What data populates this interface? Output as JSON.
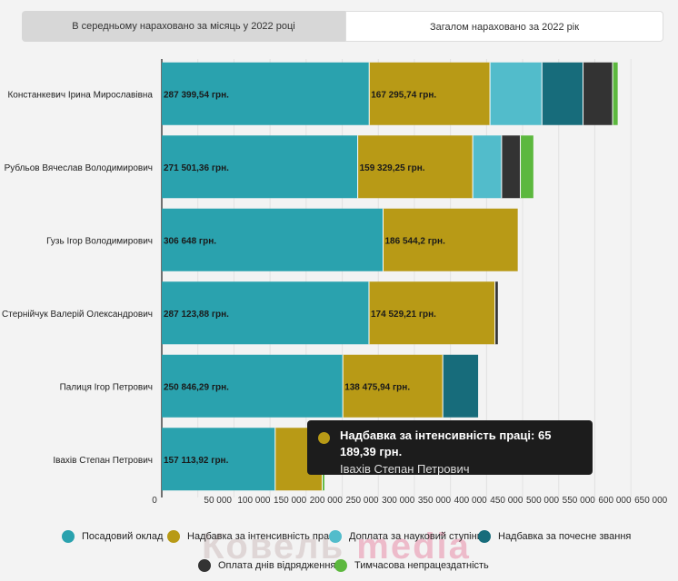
{
  "tabs": [
    {
      "label": "В середньому нараховано за місяць у 2022 році",
      "active": false
    },
    {
      "label": "Загалом нараховано за 2022 рік",
      "active": true
    }
  ],
  "chart_data": {
    "type": "bar",
    "orientation": "horizontal",
    "stacked": true,
    "categories": [
      "Констанкевич Ірина Мирославівна",
      "Рубльов Вячеслав Володимирович",
      "Гузь Ігор Володимирович",
      "Стернійчук Валерій Олександрович",
      "Палиця Ігор Петрович",
      "Івахів Степан Петрович"
    ],
    "series": [
      {
        "name": "Посадовий оклад",
        "color": "#2aa2ae",
        "values": [
          287399.54,
          271501.36,
          306648,
          287123.88,
          250846.29,
          157113.92
        ]
      },
      {
        "name": "Надбавка за інтенсивність праці",
        "color": "#b89a16",
        "values": [
          167295.74,
          159329.25,
          186544.2,
          174529.21,
          138475.94,
          65189.39
        ]
      },
      {
        "name": "Доплата за науковий ступінь",
        "color": "#52bccb",
        "values": [
          72000,
          40000,
          0,
          0,
          0,
          0
        ]
      },
      {
        "name": "Надбавка за почесне звання",
        "color": "#176c7b",
        "values": [
          57000,
          0,
          0,
          0,
          49000,
          0
        ]
      },
      {
        "name": "Оплата днів відрядження",
        "color": "#333333",
        "values": [
          41000,
          26000,
          0,
          4000,
          0,
          0
        ]
      },
      {
        "name": "Тимчасова непрацездатність",
        "color": "#5cb83e",
        "values": [
          7000,
          18000,
          0,
          0,
          0,
          3000
        ]
      }
    ],
    "data_labels": [
      [
        "287 399,54 грн.",
        "167 295,74 грн."
      ],
      [
        "271 501,36 грн.",
        "159 329,25 грн."
      ],
      [
        "306 648 грн.",
        "186 544,2 грн."
      ],
      [
        "287 123,88 грн.",
        "174 529,21 грн."
      ],
      [
        "250 846,29 грн.",
        "138 475,94 грн."
      ],
      [
        "157 113,92 грн.",
        ""
      ]
    ],
    "x_ticks": [
      0,
      50000,
      100000,
      150000,
      200000,
      250000,
      300000,
      350000,
      400000,
      450000,
      500000,
      550000,
      600000,
      650000
    ],
    "x_tick_labels": [
      "0",
      "50 000",
      "100 000",
      "150 000",
      "200 000",
      "250 000",
      "300 000",
      "350 000",
      "400 000",
      "450 000",
      "500 000",
      "550 000",
      "600 000",
      "650 000"
    ],
    "xlim": [
      0,
      680000
    ],
    "grid": true,
    "legend_position": "bottom"
  },
  "tooltip": {
    "title": "Надбавка за інтенсивність праці: 65 189,39 грн.",
    "subtitle": "Івахів Степан Петрович"
  },
  "watermark": {
    "part1": "Ковель ",
    "part2": "media"
  }
}
